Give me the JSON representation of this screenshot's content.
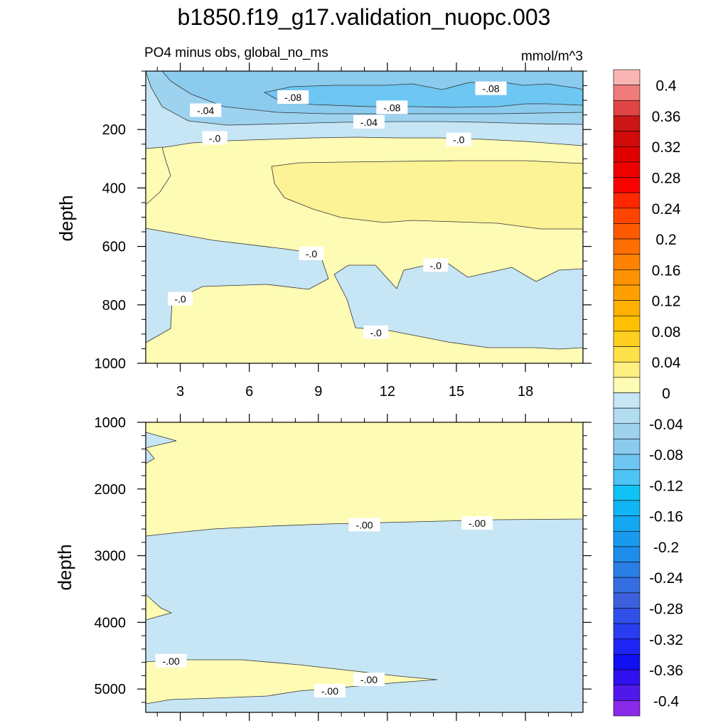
{
  "title": "b1850.f19_g17.validation_nuopc.003",
  "panel_top": {
    "left_label": "PO4 minus obs, global_no_ms",
    "right_label": "mmol/m^3",
    "ylabel": "depth"
  },
  "panel_bottom": {
    "ylabel": "depth"
  },
  "chart_data": [
    {
      "type": "contour",
      "panel": "upper ocean",
      "xlabel": "",
      "ylabel": "depth",
      "xlim": [
        1.5,
        20.5
      ],
      "ylim": [
        1000,
        0
      ],
      "x_ticks": [
        3,
        6,
        9,
        12,
        15,
        18
      ],
      "x_tick_labels": [
        "3",
        "6",
        "9",
        "12",
        "15",
        "18"
      ],
      "y_ticks": [
        200,
        400,
        600,
        800,
        1000
      ],
      "y_tick_labels": [
        "200",
        "400",
        "600",
        "800",
        "1000"
      ],
      "contour_labels": [
        {
          "text": "-.08",
          "x": 7.9,
          "depth": 90
        },
        {
          "text": "-.08",
          "x": 16.5,
          "depth": 60
        },
        {
          "text": "-.08",
          "x": 12.2,
          "depth": 125
        },
        {
          "text": "-.04",
          "x": 4.1,
          "depth": 135
        },
        {
          "text": "-.04",
          "x": 11.2,
          "depth": 175
        },
        {
          "text": "-.0",
          "x": 4.5,
          "depth": 230
        },
        {
          "text": "-.0",
          "x": 15.1,
          "depth": 235
        },
        {
          "text": "-.0",
          "x": 8.7,
          "depth": 625
        },
        {
          "text": "-.0",
          "x": 14.1,
          "depth": 665
        },
        {
          "text": "-.0",
          "x": 3.0,
          "depth": 780
        },
        {
          "text": "-.0",
          "x": 11.5,
          "depth": 895
        }
      ]
    },
    {
      "type": "contour",
      "panel": "deep ocean",
      "xlabel": "",
      "ylabel": "depth",
      "xlim": [
        1.5,
        20.5
      ],
      "ylim": [
        5350,
        1000
      ],
      "y_ticks": [
        1000,
        2000,
        3000,
        4000,
        5000
      ],
      "y_tick_labels": [
        "1000",
        "2000",
        "3000",
        "4000",
        "5000"
      ],
      "contour_labels": [
        {
          "text": "-.00",
          "x": 11.0,
          "depth": 2540
        },
        {
          "text": "-.00",
          "x": 15.9,
          "depth": 2515
        },
        {
          "text": "-.00",
          "x": 2.6,
          "depth": 4580
        },
        {
          "text": "-.00",
          "x": 11.2,
          "depth": 4860
        },
        {
          "text": "-.00",
          "x": 9.5,
          "depth": 5030
        }
      ]
    }
  ],
  "colorbar": {
    "levels": [
      -0.42,
      -0.4,
      -0.38,
      -0.36,
      -0.34,
      -0.32,
      -0.3,
      -0.28,
      -0.26,
      -0.24,
      -0.22,
      -0.2,
      -0.18,
      -0.16,
      -0.14,
      -0.12,
      -0.1,
      -0.08,
      -0.06,
      -0.04,
      -0.02,
      0,
      0.02,
      0.04,
      0.06,
      0.08,
      0.1,
      0.12,
      0.14,
      0.16,
      0.18,
      0.2,
      0.22,
      0.24,
      0.26,
      0.28,
      0.3,
      0.32,
      0.34,
      0.36,
      0.38,
      0.4,
      0.42
    ],
    "tick_labels": [
      "0.4",
      "0.36",
      "0.32",
      "0.28",
      "0.24",
      "0.2",
      "0.16",
      "0.12",
      "0.08",
      "0.04",
      "0",
      "-0.04",
      "-0.08",
      "-0.12",
      "-0.16",
      "-0.2",
      "-0.24",
      "-0.28",
      "-0.32",
      "-0.36",
      "-0.4"
    ],
    "colors_top_to_bottom": [
      "#f9b4b4",
      "#f07b7b",
      "#e04545",
      "#cc1616",
      "#d20a0a",
      "#e00000",
      "#ee0000",
      "#fc0000",
      "#ff2800",
      "#ff4400",
      "#ff5a00",
      "#ff6e00",
      "#ff8200",
      "#ff9200",
      "#ffa000",
      "#ffb000",
      "#ffc000",
      "#ffd020",
      "#ffe24a",
      "#ffee80",
      "#fefbb4",
      "#c6e5f5",
      "#b2dcf2",
      "#9ed3f0",
      "#8acbee",
      "#6ec6f2",
      "#4cc4f4",
      "#10c2f6",
      "#10b6f6",
      "#14a8f2",
      "#1a9aee",
      "#1e8ce9",
      "#2a7ee4",
      "#346ee0",
      "#3c60dc",
      "#3050e8",
      "#2a3cf0",
      "#1e24f4",
      "#1010f2",
      "#3010f0",
      "#5018ea",
      "#8a2ae8"
    ]
  },
  "fill_colors": {
    "positive_small": "#fefbb4",
    "positive_mid": "#fcf296",
    "negative_small": "#c6e5f5",
    "negative_mid": "#9ed3f0",
    "negative_more": "#8acbee",
    "negative_most": "#6ec6f2"
  }
}
